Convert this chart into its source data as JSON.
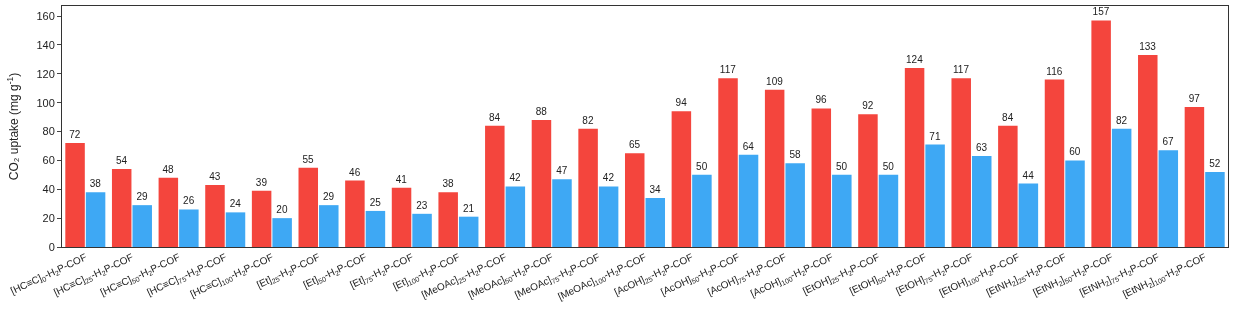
{
  "chart_data": {
    "type": "bar",
    "ylabel": "CO₂ uptake (mg g$^{-1}$)",
    "categories": [
      "[HC≡C]$_{0}$-H$_{2}$P-COF",
      "[HC≡C]$_{25}$-H$_{2}$P-COF",
      "[HC≡C]$_{50}$-H$_{2}$P-COF",
      "[HC≡C]$_{75}$-H$_{2}$P-COF",
      "[HC≡C]$_{100}$-H$_{2}$P-COF",
      "[Et]$_{25}$-H$_{2}$P-COF",
      "[Et]$_{50}$-H$_{2}$P-COF",
      "[Et]$_{75}$-H$_{2}$P-COF",
      "[Et]$_{100}$-H$_{2}$P-COF",
      "[MeOAc]$_{25}$-H$_{2}$P-COF",
      "[MeOAc]$_{50}$-H$_{2}$P-COF",
      "[MeOAc]$_{75}$-H$_{2}$P-COF",
      "[MeOAc]$_{100}$-H$_{2}$P-COF",
      "[AcOH]$_{25}$-H$_{2}$P-COF",
      "[AcOH]$_{50}$-H$_{2}$P-COF",
      "[AcOH]$_{75}$-H$_{2}$P-COF",
      "[AcOH]$_{100}$-H$_{2}$P-COF",
      "[EtOH]$_{25}$-H$_{2}$P-COF",
      "[EtOH]$_{50}$-H$_{2}$P-COF",
      "[EtOH]$_{75}$-H$_{2}$P-COF",
      "[EtOH]$_{100}$-H$_{2}$P-COF",
      "[EtNH$_{2}$]$_{25}$-H$_{2}$P-COF",
      "[EtNH$_{2}$]$_{50}$-H$_{2}$P-COF",
      "[EtNH$_{2}$]$_{75}$-H$_{2}$P-COF",
      "[EtNH$_{2}$]$_{100}$-H$_{2}$P-COF"
    ],
    "series": [
      {
        "color": "#f4453d",
        "values": [
          72,
          54,
          48,
          43,
          39,
          55,
          46,
          41,
          38,
          84,
          88,
          82,
          65,
          94,
          117,
          109,
          96,
          92,
          124,
          117,
          84,
          116,
          157,
          133,
          97
        ]
      },
      {
        "color": "#3ea8f4",
        "values": [
          38,
          29,
          26,
          24,
          20,
          29,
          25,
          23,
          21,
          42,
          47,
          42,
          34,
          50,
          64,
          58,
          50,
          50,
          71,
          63,
          44,
          60,
          82,
          67,
          52
        ]
      }
    ],
    "ylim": [
      0,
      167
    ],
    "yticks": [
      0,
      20,
      40,
      60,
      80,
      100,
      120,
      140,
      160
    ],
    "data_labels": true
  }
}
